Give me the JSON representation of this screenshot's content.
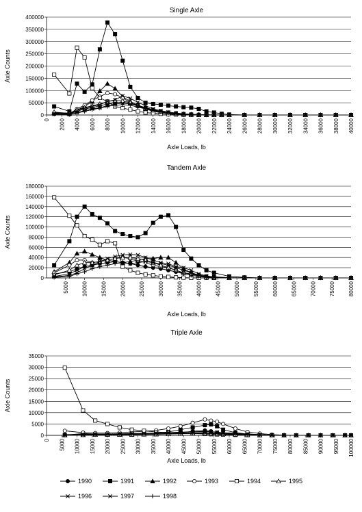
{
  "legend": {
    "series": [
      {
        "name": "1990",
        "marker": "circle"
      },
      {
        "name": "1991",
        "marker": "square"
      },
      {
        "name": "1992",
        "marker": "triangle"
      },
      {
        "name": "1993",
        "marker": "circle-open"
      },
      {
        "name": "1994",
        "marker": "square-open"
      },
      {
        "name": "1995",
        "marker": "triangle-open"
      },
      {
        "name": "1996",
        "marker": "star"
      },
      {
        "name": "1997",
        "marker": "x"
      },
      {
        "name": "1998",
        "marker": "plus"
      }
    ]
  },
  "chart_data": [
    {
      "type": "line",
      "title": "Single Axle",
      "xlabel": "Axle Loads, lb",
      "ylabel": "Axle Counts",
      "ylim": [
        0,
        400000
      ],
      "yticks": [
        0,
        50000,
        100000,
        150000,
        200000,
        250000,
        300000,
        350000,
        400000
      ],
      "xlim": [
        0,
        40000
      ],
      "xticks": [
        0,
        2000,
        4000,
        6000,
        8000,
        10000,
        12000,
        14000,
        16000,
        18000,
        20000,
        22000,
        24000,
        26000,
        28000,
        30000,
        32000,
        34000,
        36000,
        38000,
        40000
      ],
      "x": [
        1000,
        3000,
        4000,
        5000,
        6000,
        7000,
        8000,
        9000,
        10000,
        11000,
        12000,
        13000,
        14000,
        15000,
        16000,
        17000,
        18000,
        19000,
        20000,
        21000,
        22000,
        23000,
        24000,
        26000,
        28000,
        30000,
        32000,
        34000,
        36000,
        38000,
        40000
      ],
      "series": [
        {
          "name": "1990",
          "values": [
            5000,
            3000,
            15000,
            25000,
            30000,
            38000,
            45000,
            50000,
            52000,
            48000,
            40000,
            30000,
            22000,
            15000,
            10000,
            7000,
            5000,
            3000,
            2000,
            1000,
            500,
            0,
            0,
            0,
            0,
            0,
            0,
            0,
            0,
            0,
            0
          ]
        },
        {
          "name": "1991",
          "values": [
            35000,
            15000,
            128000,
            95000,
            125000,
            268000,
            378000,
            330000,
            222000,
            115000,
            70000,
            50000,
            45000,
            42000,
            38000,
            35000,
            32000,
            30000,
            25000,
            15000,
            10000,
            5000,
            2000,
            0,
            0,
            0,
            0,
            0,
            0,
            0,
            0
          ]
        },
        {
          "name": "1992",
          "values": [
            10000,
            8000,
            20000,
            35000,
            55000,
            98000,
            128000,
            108000,
            75000,
            55000,
            40000,
            25000,
            18000,
            12000,
            8000,
            5000,
            3000,
            2000,
            1000,
            500,
            0,
            0,
            0,
            0,
            0,
            0,
            0,
            0,
            0,
            0,
            0
          ]
        },
        {
          "name": "1993",
          "values": [
            8000,
            5000,
            25000,
            40000,
            60000,
            75000,
            90000,
            85000,
            70000,
            50000,
            35000,
            25000,
            15000,
            10000,
            6000,
            4000,
            2000,
            1000,
            500,
            0,
            0,
            0,
            0,
            0,
            0,
            0,
            0,
            0,
            0,
            0,
            0
          ]
        },
        {
          "name": "1994",
          "values": [
            165000,
            88000,
            275000,
            235000,
            110000,
            70000,
            55000,
            35000,
            28000,
            22000,
            15000,
            10000,
            7000,
            5000,
            3000,
            2000,
            1000,
            500,
            0,
            0,
            0,
            0,
            0,
            0,
            0,
            0,
            0,
            0,
            0,
            0,
            0
          ]
        },
        {
          "name": "1995",
          "values": [
            12000,
            6000,
            22000,
            30000,
            38000,
            45000,
            55000,
            60000,
            58000,
            50000,
            38000,
            28000,
            20000,
            14000,
            10000,
            7000,
            4000,
            2000,
            1000,
            500,
            0,
            0,
            0,
            0,
            0,
            0,
            0,
            0,
            0,
            0,
            0
          ]
        },
        {
          "name": "1996",
          "values": [
            4000,
            2000,
            10000,
            18000,
            25000,
            30000,
            38000,
            45000,
            48000,
            45000,
            38000,
            30000,
            22000,
            15000,
            10000,
            6000,
            4000,
            2000,
            1000,
            0,
            0,
            0,
            0,
            0,
            0,
            0,
            0,
            0,
            0,
            0,
            0
          ]
        },
        {
          "name": "1997",
          "values": [
            6000,
            4000,
            18000,
            28000,
            35000,
            42000,
            55000,
            62000,
            78000,
            68000,
            52000,
            38000,
            25000,
            18000,
            12000,
            8000,
            5000,
            3000,
            1000,
            500,
            0,
            0,
            0,
            0,
            0,
            0,
            0,
            0,
            0,
            0,
            0
          ]
        },
        {
          "name": "1998",
          "values": [
            3000,
            2000,
            8000,
            15000,
            22000,
            28000,
            35000,
            40000,
            42000,
            40000,
            32000,
            25000,
            18000,
            12000,
            8000,
            5000,
            3000,
            1500,
            500,
            0,
            0,
            0,
            0,
            0,
            0,
            0,
            0,
            0,
            0,
            0,
            0
          ]
        }
      ]
    },
    {
      "type": "line",
      "title": "Tandem Axle",
      "xlabel": "Axle Loads, lb",
      "ylabel": "Axle Counts",
      "ylim": [
        0,
        180000
      ],
      "yticks": [
        0,
        20000,
        40000,
        60000,
        80000,
        100000,
        120000,
        140000,
        160000,
        180000
      ],
      "xlim": [
        0,
        80000
      ],
      "xticks": [
        5000,
        10000,
        15000,
        20000,
        25000,
        30000,
        35000,
        40000,
        45000,
        50000,
        55000,
        60000,
        65000,
        70000,
        75000,
        80000
      ],
      "x": [
        2000,
        6000,
        8000,
        10000,
        12000,
        14000,
        16000,
        18000,
        20000,
        22000,
        24000,
        26000,
        28000,
        30000,
        32000,
        34000,
        36000,
        38000,
        40000,
        42000,
        44000,
        48000,
        52000,
        56000,
        60000,
        64000,
        68000,
        72000,
        76000,
        80000
      ],
      "series": [
        {
          "name": "1990",
          "values": [
            8000,
            12000,
            18000,
            22000,
            25000,
            28000,
            30000,
            32000,
            30000,
            28000,
            25000,
            22000,
            20000,
            18000,
            15000,
            12000,
            10000,
            8000,
            5000,
            3000,
            2000,
            500,
            0,
            0,
            0,
            0,
            0,
            0,
            0,
            0
          ]
        },
        {
          "name": "1991",
          "values": [
            25000,
            72000,
            120000,
            140000,
            125000,
            118000,
            107000,
            92000,
            86000,
            82000,
            80000,
            88000,
            108000,
            120000,
            123000,
            100000,
            55000,
            38000,
            25000,
            15000,
            10000,
            3000,
            1000,
            0,
            0,
            0,
            0,
            0,
            0,
            0
          ]
        },
        {
          "name": "1992",
          "values": [
            12000,
            30000,
            48000,
            52000,
            46000,
            40000,
            35000,
            32000,
            30000,
            32000,
            35000,
            38000,
            38000,
            40000,
            40000,
            30000,
            18000,
            10000,
            5000,
            2000,
            1000,
            0,
            0,
            0,
            0,
            0,
            0,
            0,
            0,
            0
          ]
        },
        {
          "name": "1993",
          "values": [
            10000,
            25000,
            35000,
            35000,
            30000,
            32000,
            35000,
            38000,
            40000,
            38000,
            35000,
            30000,
            25000,
            22000,
            20000,
            15000,
            10000,
            8000,
            5000,
            2000,
            1000,
            0,
            0,
            0,
            0,
            0,
            0,
            0,
            0,
            0
          ]
        },
        {
          "name": "1994",
          "values": [
            158000,
            122000,
            103000,
            82000,
            75000,
            65000,
            72000,
            68000,
            22000,
            15000,
            10000,
            7000,
            5000,
            3000,
            2000,
            1000,
            500,
            0,
            0,
            0,
            0,
            0,
            0,
            0,
            0,
            0,
            0,
            0,
            0,
            0
          ]
        },
        {
          "name": "1995",
          "values": [
            6000,
            15000,
            25000,
            30000,
            30000,
            32000,
            35000,
            38000,
            40000,
            40000,
            38000,
            35000,
            30000,
            25000,
            20000,
            15000,
            10000,
            7000,
            4000,
            2000,
            1000,
            0,
            0,
            0,
            0,
            0,
            0,
            0,
            0,
            0
          ]
        },
        {
          "name": "1996",
          "values": [
            3000,
            8000,
            15000,
            22000,
            25000,
            28000,
            30000,
            32000,
            30000,
            28000,
            30000,
            32000,
            30000,
            28000,
            25000,
            20000,
            15000,
            10000,
            6000,
            3000,
            1500,
            0,
            0,
            0,
            0,
            0,
            0,
            0,
            0,
            0
          ]
        },
        {
          "name": "1997",
          "values": [
            2000,
            5000,
            10000,
            18000,
            25000,
            32000,
            38000,
            42000,
            45000,
            46000,
            45000,
            40000,
            35000,
            30000,
            28000,
            22000,
            20000,
            15000,
            8000,
            4000,
            2000,
            0,
            0,
            0,
            0,
            0,
            0,
            0,
            0,
            0
          ]
        },
        {
          "name": "1998",
          "values": [
            1000,
            3000,
            8000,
            12000,
            18000,
            22000,
            25000,
            28000,
            30000,
            28000,
            25000,
            22000,
            20000,
            18000,
            15000,
            12000,
            8000,
            5000,
            3000,
            1000,
            500,
            0,
            0,
            0,
            0,
            0,
            0,
            0,
            0,
            0
          ]
        }
      ]
    },
    {
      "type": "line",
      "title": "Triple Axle",
      "xlabel": "Axle Loads, lb",
      "ylabel": "Axle Counts",
      "ylim": [
        0,
        35000
      ],
      "yticks": [
        0,
        5000,
        10000,
        15000,
        20000,
        25000,
        30000,
        35000
      ],
      "xlim": [
        0,
        100000
      ],
      "xticks": [
        0,
        5000,
        10000,
        15000,
        20000,
        25000,
        30000,
        35000,
        40000,
        45000,
        50000,
        55000,
        60000,
        65000,
        70000,
        75000,
        80000,
        85000,
        90000,
        95000,
        100000
      ],
      "x": [
        6000,
        12000,
        16000,
        20000,
        24000,
        28000,
        32000,
        36000,
        40000,
        44000,
        48000,
        52000,
        54000,
        56000,
        58000,
        62000,
        66000,
        70000,
        74000,
        78000,
        82000,
        86000,
        90000,
        94000,
        98000,
        100000
      ],
      "series": [
        {
          "name": "1990",
          "values": [
            300,
            500,
            500,
            500,
            500,
            500,
            500,
            500,
            800,
            1200,
            1800,
            2200,
            1800,
            1200,
            800,
            500,
            300,
            200,
            100,
            0,
            0,
            0,
            0,
            0,
            0,
            0
          ]
        },
        {
          "name": "1991",
          "values": [
            100,
            800,
            600,
            500,
            500,
            500,
            700,
            1000,
            1500,
            2500,
            3500,
            4500,
            4800,
            4000,
            2500,
            1200,
            600,
            300,
            100,
            0,
            0,
            0,
            0,
            0,
            0,
            0
          ]
        },
        {
          "name": "1992",
          "values": [
            200,
            300,
            300,
            300,
            300,
            300,
            400,
            500,
            600,
            800,
            1000,
            1100,
            1000,
            800,
            600,
            400,
            200,
            100,
            0,
            0,
            0,
            0,
            0,
            0,
            0,
            0
          ]
        },
        {
          "name": "1993",
          "values": [
            2000,
            1200,
            1000,
            1000,
            1200,
            1500,
            1800,
            2200,
            3000,
            4000,
            5500,
            7000,
            6500,
            6000,
            5000,
            3000,
            1500,
            800,
            300,
            100,
            0,
            0,
            0,
            0,
            0,
            0
          ]
        },
        {
          "name": "1994",
          "values": [
            29800,
            11000,
            6500,
            5000,
            3500,
            2500,
            2000,
            1500,
            1200,
            1000,
            800,
            600,
            500,
            400,
            300,
            200,
            100,
            0,
            0,
            0,
            0,
            0,
            0,
            0,
            0,
            0
          ]
        },
        {
          "name": "1995",
          "values": [
            100,
            200,
            300,
            400,
            400,
            400,
            500,
            500,
            600,
            700,
            800,
            900,
            800,
            700,
            600,
            400,
            200,
            100,
            0,
            0,
            0,
            0,
            0,
            0,
            0,
            0
          ]
        },
        {
          "name": "1996",
          "values": [
            100,
            300,
            400,
            500,
            600,
            700,
            800,
            900,
            1000,
            1100,
            1200,
            1200,
            1100,
            1000,
            900,
            700,
            500,
            300,
            100,
            0,
            0,
            0,
            0,
            0,
            0,
            0
          ]
        },
        {
          "name": "1997",
          "values": [
            200,
            400,
            500,
            600,
            700,
            800,
            900,
            1000,
            1200,
            1400,
            1600,
            1700,
            1600,
            1400,
            1200,
            900,
            600,
            300,
            100,
            0,
            0,
            0,
            0,
            0,
            0,
            0
          ]
        },
        {
          "name": "1998",
          "values": [
            100,
            200,
            300,
            300,
            400,
            400,
            500,
            600,
            700,
            800,
            900,
            1000,
            900,
            800,
            700,
            500,
            300,
            200,
            100,
            0,
            0,
            0,
            0,
            0,
            0,
            0
          ]
        }
      ]
    }
  ]
}
